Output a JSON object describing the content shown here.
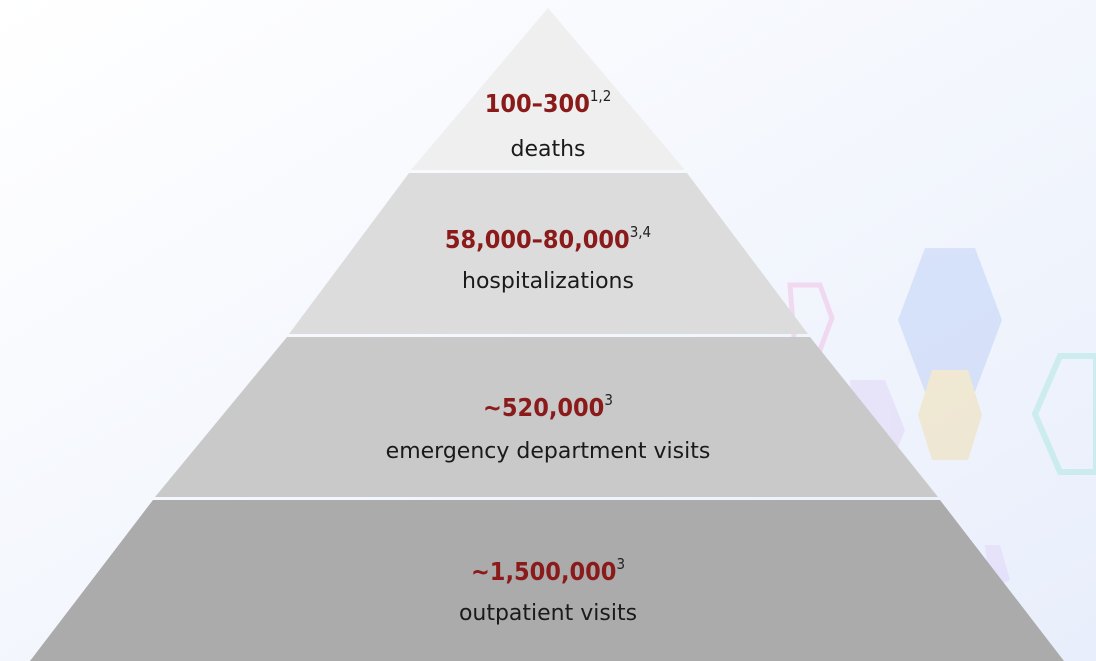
{
  "pyramid": {
    "levels": [
      {
        "value": "100–300",
        "note": "1,2",
        "label": "deaths"
      },
      {
        "value": "58,000–80,000",
        "note": "3,4",
        "label": "hospitalizations"
      },
      {
        "value": "~520,000",
        "note": "3",
        "label": "emergency department visits"
      },
      {
        "value": "~1,500,000",
        "note": "3",
        "label": "outpatient visits"
      }
    ]
  }
}
